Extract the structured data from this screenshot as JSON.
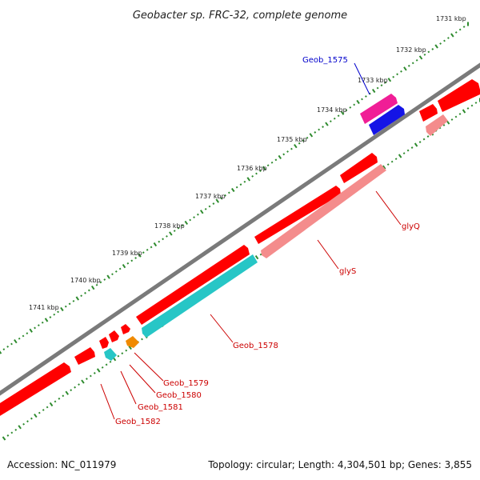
{
  "title": "Geobacter sp. FRC-32, complete genome",
  "footer": {
    "accession": "Accession: NC_011979",
    "summary": "Topology: circular; Length: 4,304,501 bp; Genes: 3,855"
  },
  "colors": {
    "backbone": "#7a7a7a",
    "tick_dots": "#2e8b2e",
    "forward_gene": "#ff0000",
    "reverse_gene": "#f48c8c",
    "rna_cyan": "#27c6c6",
    "orange_gene": "#f08a00",
    "pink_gene": "#f01e96",
    "blue_gene": "#1414e6",
    "label_red": "#cc0000",
    "label_blue": "#0000cc"
  },
  "ticks": [
    "1731 kbp",
    "1732 kbp",
    "1733 kbp",
    "1734 kbp",
    "1735 kbp",
    "1736 kbp",
    "1737 kbp",
    "1738 kbp",
    "1739 kbp",
    "1740 kbp",
    "1741 kbp"
  ],
  "gene_labels": [
    {
      "text": "Geob_1575",
      "color": "blue"
    },
    {
      "text": "glyQ",
      "color": "red"
    },
    {
      "text": "glyS",
      "color": "red"
    },
    {
      "text": "Geob_1578",
      "color": "red"
    },
    {
      "text": "Geob_1579",
      "color": "red"
    },
    {
      "text": "Geob_1580",
      "color": "red"
    },
    {
      "text": "Geob_1581",
      "color": "red"
    },
    {
      "text": "Geob_1582",
      "color": "red"
    }
  ]
}
